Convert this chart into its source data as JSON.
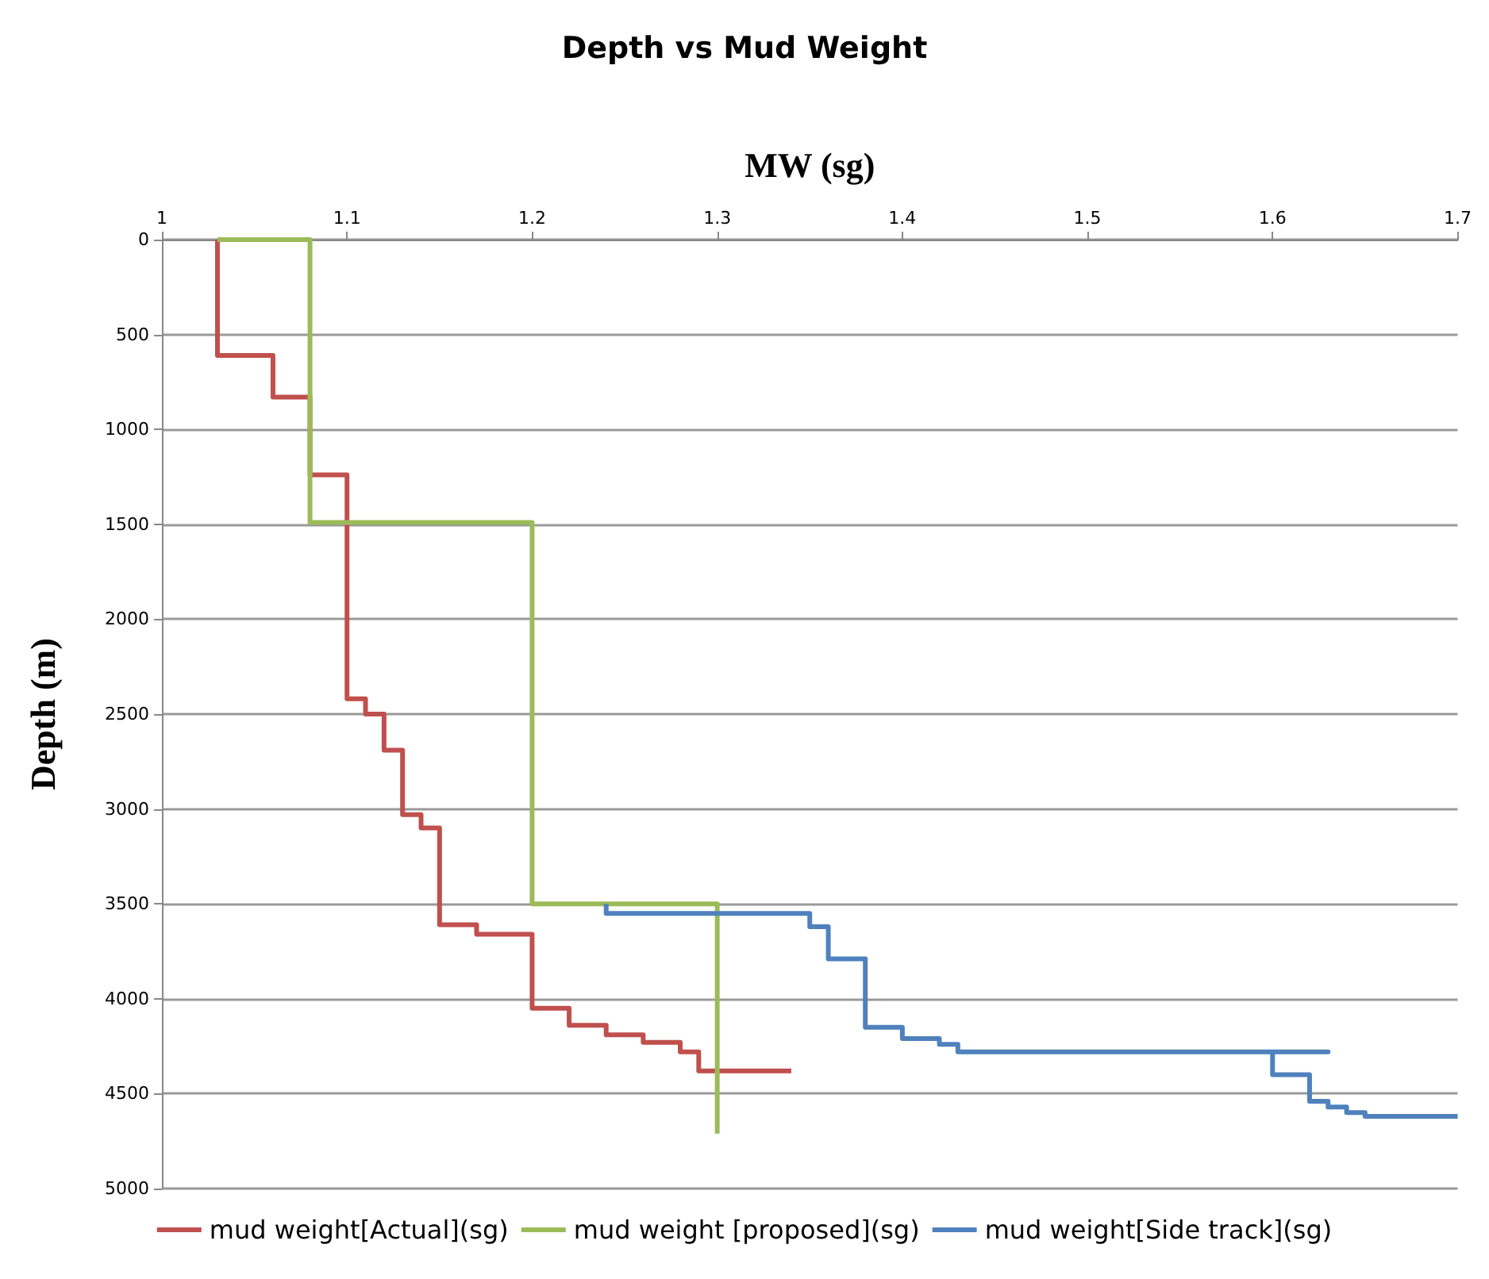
{
  "chart_data": {
    "type": "line",
    "title": "Depth vs Mud Weight",
    "xlabel": "MW (sg)",
    "ylabel": "Depth (m)",
    "xlim": [
      1,
      1.7
    ],
    "xticks": [
      1,
      1.1,
      1.2,
      1.3,
      1.4,
      1.5,
      1.6,
      1.7
    ],
    "ylim": [
      5000,
      0
    ],
    "yticks": [
      0,
      500,
      1000,
      1500,
      2000,
      2500,
      3000,
      3500,
      4000,
      4500,
      5000
    ],
    "grid": "y",
    "legend": "bottom",
    "marker": "none",
    "line_style": "solid",
    "series": [
      {
        "name": "mud weight[Actual](sg)",
        "color": "#c0504d",
        "x": [
          1.03,
          1.03,
          1.06,
          1.06,
          1.08,
          1.08,
          1.1,
          1.1,
          1.11,
          1.11,
          1.12,
          1.12,
          1.13,
          1.13,
          1.14,
          1.14,
          1.15,
          1.15,
          1.17,
          1.17,
          1.2,
          1.2,
          1.22,
          1.22,
          1.24,
          1.24,
          1.26,
          1.26,
          1.28,
          1.28,
          1.29,
          1.29,
          1.34
        ],
        "values": [
          0,
          610,
          610,
          830,
          830,
          1240,
          1240,
          2420,
          2420,
          2500,
          2500,
          2690,
          2690,
          3030,
          3030,
          3100,
          3100,
          3610,
          3610,
          3660,
          3660,
          4050,
          4050,
          4140,
          4140,
          4190,
          4190,
          4230,
          4230,
          4280,
          4280,
          4380,
          4380
        ]
      },
      {
        "name": "mud weight [proposed](sg)",
        "color": "#9bbb59",
        "x": [
          1.03,
          1.08,
          1.08,
          1.2,
          1.2,
          1.3,
          1.3
        ],
        "values": [
          0,
          0,
          1490,
          1490,
          3500,
          3500,
          4710
        ]
      },
      {
        "name": "mud weight[Side track](sg)",
        "color": "#4f81bd",
        "x": [
          1.24,
          1.24,
          1.35,
          1.35,
          1.36,
          1.36,
          1.38,
          1.38,
          1.4,
          1.4,
          1.42,
          1.42,
          1.43,
          1.43,
          1.63,
          1.6,
          1.6,
          1.62,
          1.62,
          1.63,
          1.63,
          1.64,
          1.64,
          1.65,
          1.65,
          1.7
        ],
        "values": [
          3500,
          3550,
          3550,
          3620,
          3620,
          3790,
          3790,
          4150,
          4150,
          4210,
          4210,
          4240,
          4240,
          4280,
          4280,
          4280,
          4400,
          4400,
          4540,
          4540,
          4570,
          4570,
          4600,
          4600,
          4620,
          4620
        ]
      }
    ]
  }
}
